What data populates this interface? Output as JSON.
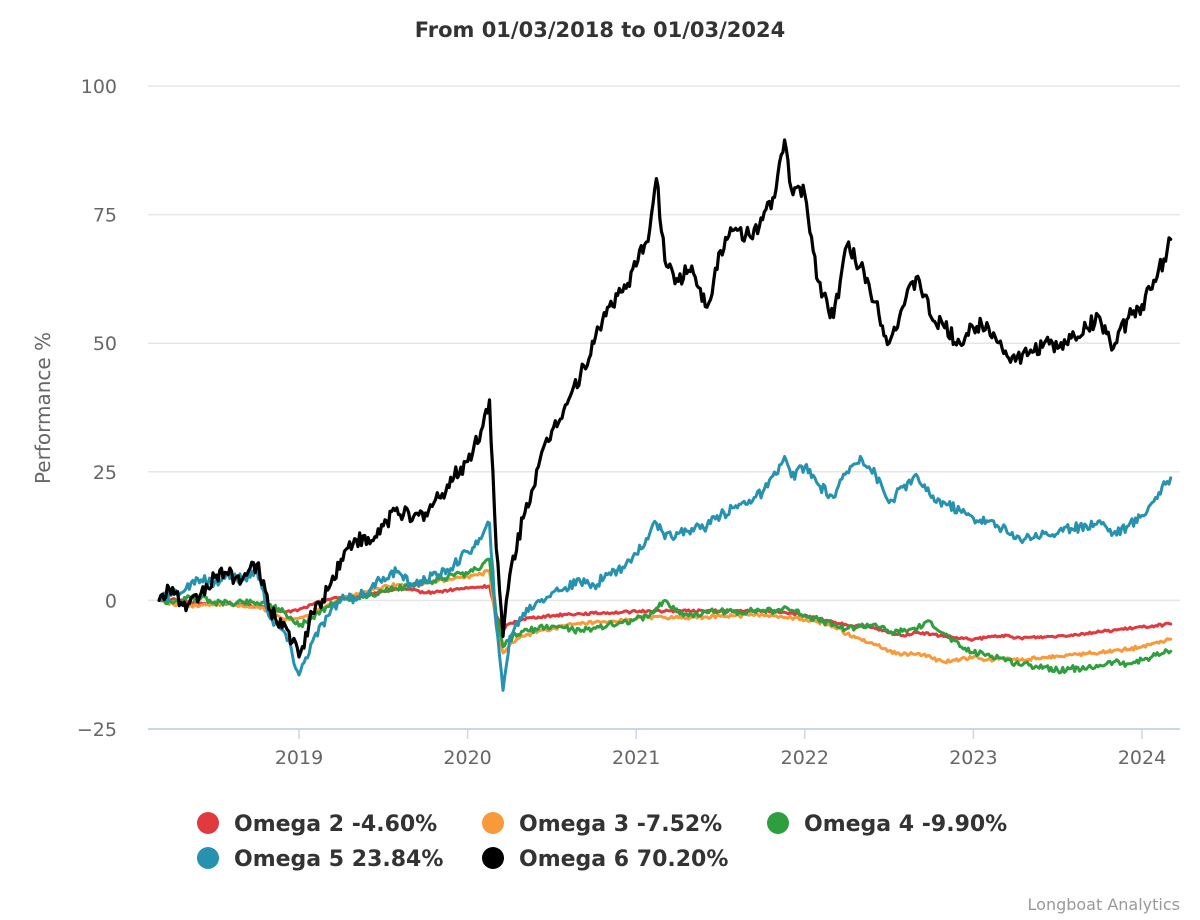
{
  "chart_data": {
    "type": "line",
    "title": "From 01/03/2018 to 01/03/2024",
    "xlabel": "",
    "ylabel": "Performance %",
    "ylim": [
      -25,
      100
    ],
    "xlim": [
      2018.17,
      2024.17
    ],
    "yticks": [
      -25,
      0,
      25,
      50,
      75,
      100
    ],
    "ytick_labels": [
      "−25",
      "0",
      "25",
      "50",
      "75",
      "100"
    ],
    "xticks": [
      2019,
      2020,
      2021,
      2022,
      2023,
      2024
    ],
    "xtick_labels": [
      "2019",
      "2020",
      "2021",
      "2022",
      "2023",
      "2024"
    ],
    "grid": true,
    "legend_position": "bottom",
    "credit": "Longboat Analytics",
    "x": [
      2018.17,
      2018.25,
      2018.33,
      2018.42,
      2018.5,
      2018.58,
      2018.67,
      2018.75,
      2018.83,
      2018.92,
      2019.0,
      2019.08,
      2019.17,
      2019.25,
      2019.33,
      2019.42,
      2019.5,
      2019.58,
      2019.67,
      2019.75,
      2019.83,
      2019.92,
      2020.0,
      2020.08,
      2020.13,
      2020.17,
      2020.21,
      2020.25,
      2020.33,
      2020.42,
      2020.5,
      2020.58,
      2020.67,
      2020.75,
      2020.83,
      2020.92,
      2021.0,
      2021.08,
      2021.12,
      2021.17,
      2021.25,
      2021.33,
      2021.42,
      2021.5,
      2021.58,
      2021.67,
      2021.75,
      2021.83,
      2021.88,
      2021.92,
      2022.0,
      2022.08,
      2022.17,
      2022.25,
      2022.33,
      2022.42,
      2022.5,
      2022.58,
      2022.67,
      2022.75,
      2022.83,
      2022.92,
      2023.0,
      2023.08,
      2023.17,
      2023.25,
      2023.33,
      2023.42,
      2023.5,
      2023.58,
      2023.67,
      2023.75,
      2023.83,
      2023.92,
      2024.0,
      2024.08,
      2024.17
    ],
    "series": [
      {
        "name": "Omega 2",
        "color": "#e0393e",
        "final_label": "-4.60%",
        "values": [
          0,
          0.3,
          -0.2,
          -0.5,
          -0.8,
          -0.5,
          -1.0,
          -1.2,
          -1.5,
          -2.3,
          -1.8,
          -0.8,
          0.2,
          0.6,
          0.9,
          1.2,
          1.8,
          2.2,
          2.0,
          1.5,
          1.7,
          2.1,
          2.4,
          2.6,
          2.8,
          -3.0,
          -5.5,
          -4.5,
          -3.6,
          -3.2,
          -3.0,
          -2.7,
          -2.6,
          -2.5,
          -2.4,
          -2.3,
          -2.2,
          -2.0,
          -2.0,
          -2.1,
          -2.0,
          -2.1,
          -2.0,
          -2.1,
          -2.0,
          -2.1,
          -2.0,
          -2.2,
          -2.3,
          -2.5,
          -3.0,
          -3.6,
          -4.3,
          -4.8,
          -5.0,
          -5.5,
          -6.3,
          -6.8,
          -6.2,
          -6.6,
          -7.0,
          -7.4,
          -7.6,
          -7.2,
          -6.8,
          -7.3,
          -7.2,
          -7.1,
          -6.9,
          -6.7,
          -6.4,
          -6.1,
          -5.8,
          -5.5,
          -5.2,
          -4.9,
          -4.6
        ]
      },
      {
        "name": "Omega 3",
        "color": "#f89a3a",
        "final_label": "-7.52%",
        "values": [
          0,
          -0.6,
          -1.0,
          -0.9,
          -0.8,
          -0.7,
          -1.2,
          -1.3,
          -2.0,
          -3.8,
          -3.5,
          -2.3,
          -0.9,
          0.3,
          1.0,
          1.8,
          2.7,
          3.0,
          2.8,
          3.4,
          3.9,
          4.2,
          4.6,
          5.1,
          5.8,
          -5.0,
          -10.2,
          -8.6,
          -7.0,
          -5.9,
          -5.5,
          -4.9,
          -4.6,
          -4.3,
          -4.4,
          -3.9,
          -3.5,
          -3.3,
          -3.1,
          -3.3,
          -3.4,
          -3.3,
          -3.2,
          -3.1,
          -3.0,
          -2.9,
          -2.8,
          -3.0,
          -3.3,
          -3.4,
          -3.8,
          -4.2,
          -5.0,
          -6.5,
          -7.5,
          -8.5,
          -9.8,
          -10.5,
          -10.3,
          -11.2,
          -12.0,
          -11.5,
          -11.0,
          -11.6,
          -11.3,
          -11.5,
          -11.4,
          -11.1,
          -10.8,
          -10.6,
          -10.3,
          -10.1,
          -9.8,
          -9.5,
          -9.0,
          -8.2,
          -7.52
        ]
      },
      {
        "name": "Omega 4",
        "color": "#2e9e3e",
        "final_label": "-9.90%",
        "values": [
          0,
          -0.5,
          0.3,
          0.5,
          -0.3,
          -0.6,
          -0.3,
          -0.4,
          -0.8,
          -2.5,
          -5.0,
          -3.2,
          -1.2,
          0.1,
          0.5,
          1.0,
          1.8,
          2.3,
          2.8,
          3.5,
          4.2,
          4.8,
          5.2,
          6.4,
          8.0,
          -3.0,
          -9.0,
          -7.5,
          -6.0,
          -5.5,
          -5.0,
          -5.3,
          -6.0,
          -5.3,
          -4.8,
          -4.3,
          -3.6,
          -3.0,
          -1.5,
          0.0,
          -2.3,
          -2.8,
          -2.4,
          -2.0,
          -2.3,
          -2.1,
          -1.9,
          -2.2,
          -1.2,
          -1.9,
          -2.8,
          -3.8,
          -4.8,
          -5.5,
          -5.0,
          -4.6,
          -6.3,
          -6.0,
          -5.3,
          -4.2,
          -6.6,
          -9.0,
          -10.2,
          -10.5,
          -11.2,
          -12.2,
          -12.6,
          -12.9,
          -13.6,
          -13.2,
          -13.4,
          -12.6,
          -12.0,
          -12.3,
          -11.6,
          -10.7,
          -9.9
        ]
      },
      {
        "name": "Omega 5",
        "color": "#2692b0",
        "final_label": "23.84%",
        "values": [
          0,
          1.2,
          2.3,
          4.0,
          3.5,
          5.0,
          4.0,
          6.0,
          -3.5,
          -6.5,
          -14.5,
          -8.0,
          -3.0,
          0.0,
          0.5,
          2.0,
          4.5,
          5.5,
          3.0,
          4.0,
          5.0,
          7.0,
          9.5,
          12.0,
          15.0,
          -5.0,
          -17.5,
          -7.0,
          -2.5,
          0.0,
          1.5,
          2.5,
          3.5,
          3.0,
          5.0,
          6.5,
          9.0,
          13.0,
          15.0,
          12.0,
          13.0,
          14.0,
          14.5,
          16.5,
          18.0,
          19.5,
          21.0,
          24.5,
          28.0,
          24.0,
          26.0,
          22.5,
          20.0,
          25.0,
          28.0,
          24.5,
          19.0,
          22.0,
          24.0,
          20.0,
          19.0,
          17.5,
          16.0,
          15.5,
          14.0,
          12.0,
          12.5,
          13.0,
          13.0,
          14.0,
          14.5,
          15.5,
          13.0,
          14.5,
          16.5,
          20.0,
          23.84
        ]
      },
      {
        "name": "Omega 6",
        "color": "#000000",
        "final_label": "70.20%",
        "values": [
          0,
          2.5,
          -2.0,
          1.5,
          4.5,
          5.0,
          4.5,
          7.0,
          -2.0,
          -5.0,
          -11.0,
          -2.5,
          2.0,
          8.0,
          12.0,
          11.0,
          14.5,
          18.0,
          15.5,
          17.0,
          20.0,
          24.0,
          27.0,
          33.0,
          39.0,
          10.0,
          -7.0,
          5.0,
          16.0,
          26.0,
          33.0,
          38.0,
          44.0,
          50.0,
          57.0,
          60.0,
          65.0,
          72.0,
          82.0,
          66.0,
          62.0,
          65.0,
          57.0,
          68.0,
          72.0,
          71.0,
          74.0,
          80.0,
          89.5,
          80.0,
          79.0,
          62.0,
          55.0,
          69.0,
          65.0,
          58.0,
          50.0,
          57.0,
          63.0,
          55.0,
          53.0,
          50.0,
          53.0,
          54.0,
          49.0,
          46.5,
          48.0,
          50.0,
          49.0,
          51.0,
          53.0,
          55.0,
          49.0,
          55.0,
          57.5,
          62.0,
          70.2
        ]
      }
    ]
  },
  "legend": [
    {
      "label": "Omega 2 -4.60%",
      "color": "#e0393e"
    },
    {
      "label": "Omega 3 -7.52%",
      "color": "#f89a3a"
    },
    {
      "label": "Omega 4 -9.90%",
      "color": "#2e9e3e"
    },
    {
      "label": "Omega 5 23.84%",
      "color": "#2692b0"
    },
    {
      "label": "Omega 6 70.20%",
      "color": "#000000"
    }
  ]
}
